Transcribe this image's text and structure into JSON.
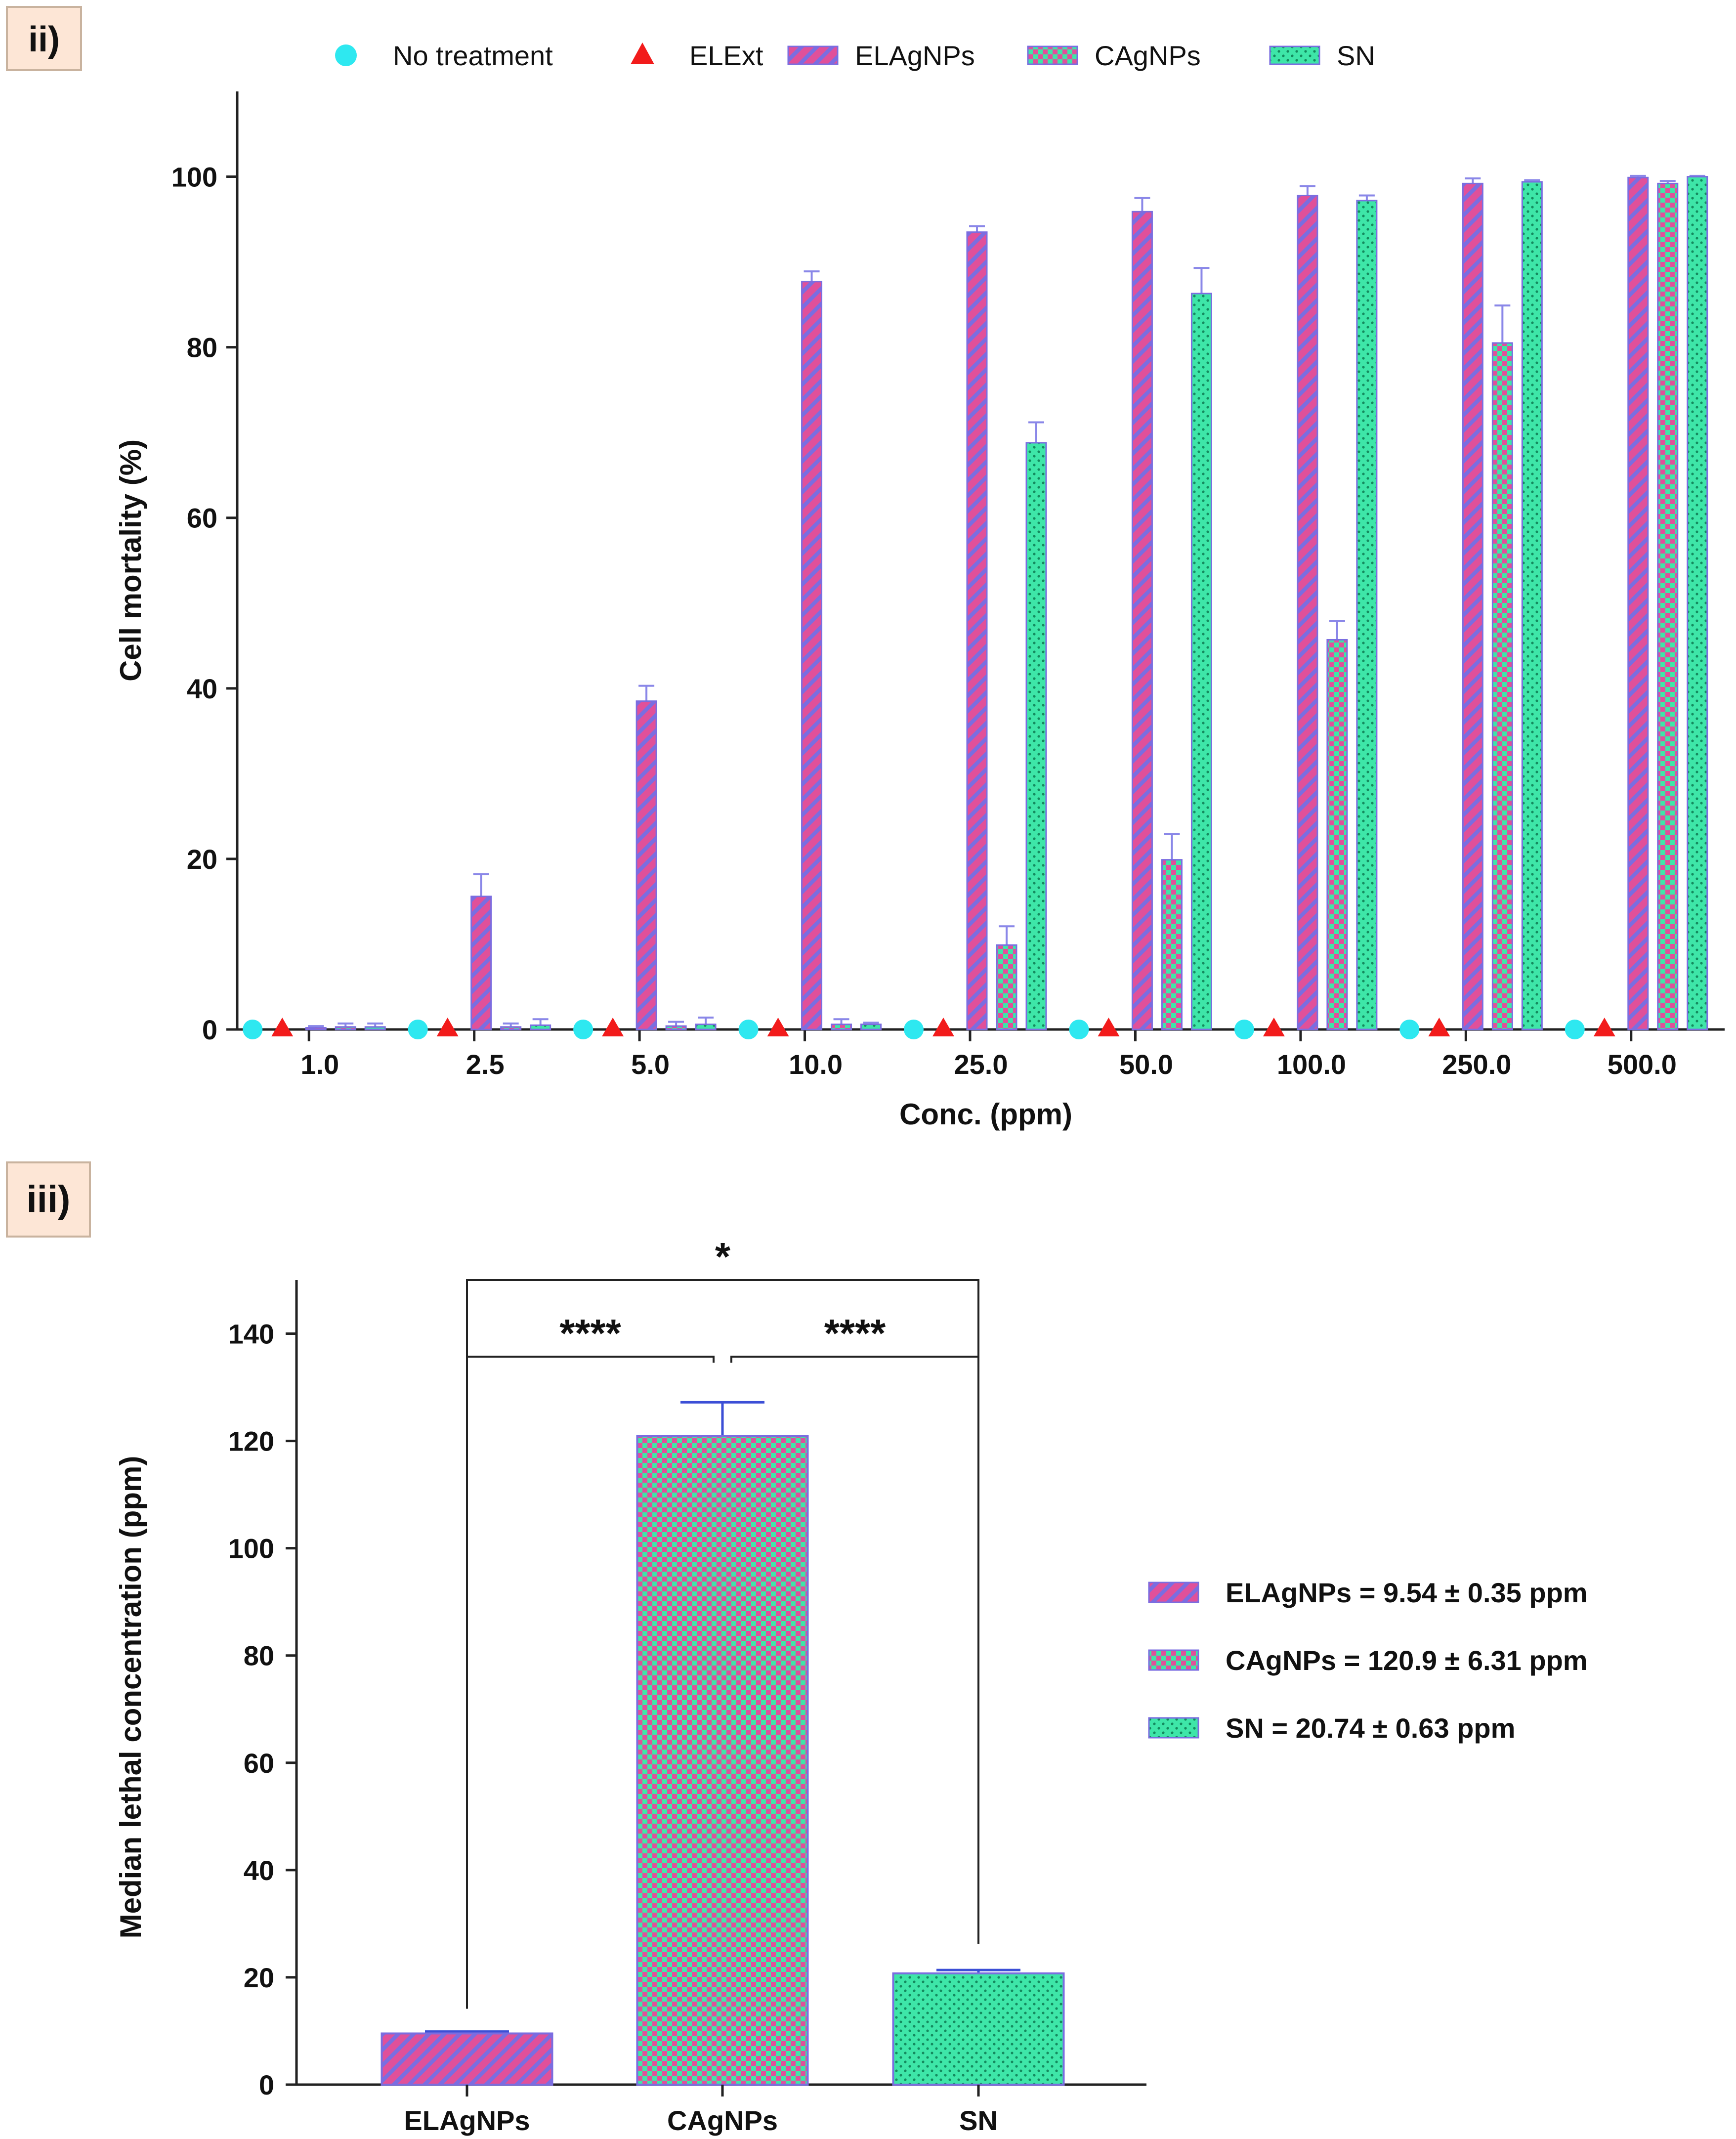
{
  "colors": {
    "pink": "#e0509a",
    "green": "#3ee6a8",
    "greenLight": "#5aeab8",
    "outline": "#7b6de0",
    "cyan": "#2ee8f0",
    "red": "#f21b1b",
    "axis": "#222222",
    "labelBox": "#fde6d6",
    "errorBlue": "#3c4fd6"
  },
  "panel_labels": {
    "ii": "ii)",
    "iii": "iii)"
  },
  "chart_data": [
    {
      "type": "bar",
      "title": "",
      "xlabel": "Conc. (ppm)",
      "ylabel": "Cell mortality (%)",
      "ylim": [
        0,
        110
      ],
      "yticks": [
        0,
        20,
        40,
        60,
        80,
        100
      ],
      "legend_position": "top",
      "categories": [
        "1.0",
        "2.5",
        "5.0",
        "10.0",
        "25.0",
        "50.0",
        "100.0",
        "250.0",
        "500.0"
      ],
      "series": [
        {
          "name": "No treatment",
          "kind": "marker",
          "shape": "circle",
          "values": [
            0,
            0,
            0,
            0,
            0,
            0,
            0,
            0,
            0
          ]
        },
        {
          "name": "ELExt",
          "kind": "marker",
          "shape": "triangle",
          "values": [
            0,
            0,
            0,
            0,
            0,
            0,
            0,
            0,
            0
          ]
        },
        {
          "name": "ELAgNPs",
          "kind": "bar",
          "pattern": "stripes",
          "values": [
            0.2,
            15.6,
            38.5,
            87.7,
            93.5,
            95.9,
            97.8,
            99.2,
            99.9
          ],
          "errors": [
            0.2,
            2.6,
            1.8,
            1.2,
            0.7,
            1.6,
            1.1,
            0.6,
            0.2
          ]
        },
        {
          "name": "CAgNPs",
          "kind": "bar",
          "pattern": "checker",
          "values": [
            0.3,
            0.3,
            0.4,
            0.6,
            9.9,
            19.9,
            45.7,
            80.5,
            99.2
          ],
          "errors": [
            0.4,
            0.4,
            0.5,
            0.6,
            2.2,
            3.0,
            2.2,
            4.4,
            0.3
          ]
        },
        {
          "name": "SN",
          "kind": "bar",
          "pattern": "dots",
          "values": [
            0.3,
            0.5,
            0.6,
            0.6,
            68.8,
            86.3,
            97.2,
            99.4,
            100.0
          ],
          "errors": [
            0.4,
            0.7,
            0.8,
            0.2,
            2.4,
            3.0,
            0.6,
            0.2,
            0.1
          ]
        }
      ]
    },
    {
      "type": "bar",
      "title": "",
      "xlabel": "",
      "ylabel": "Median lethal concentration (ppm)",
      "ylim": [
        0,
        150
      ],
      "yticks": [
        0,
        20,
        40,
        60,
        80,
        100,
        120,
        140
      ],
      "legend_position": "right",
      "categories": [
        "ELAgNPs",
        "CAgNPs",
        "SN"
      ],
      "values": [
        9.54,
        120.9,
        20.74
      ],
      "errors": [
        0.35,
        6.31,
        0.63
      ],
      "patterns": [
        "stripes",
        "checker",
        "dots"
      ],
      "legend": [
        "ELAgNPs = 9.54 ± 0.35 ppm",
        "CAgNPs = 120.9 ± 6.31 ppm",
        "SN = 20.74 ± 0.63 ppm"
      ],
      "significance": [
        {
          "from": 0,
          "to": 2,
          "label": "*"
        },
        {
          "from": 0,
          "to": 1,
          "label": "****"
        },
        {
          "from": 1,
          "to": 2,
          "label": "****"
        }
      ]
    }
  ]
}
